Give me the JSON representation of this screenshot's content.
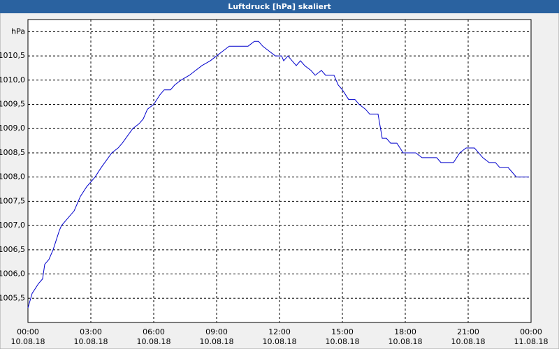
{
  "chart_data": {
    "type": "line",
    "title": "Luftdruck [hPa] skaliert",
    "xlim": [
      0,
      24
    ],
    "ylim": [
      1005,
      1011.25
    ],
    "xticks": [
      {
        "value": 0,
        "label": "00:00\n10.08.18"
      },
      {
        "value": 3,
        "label": "03:00\n10.08.18"
      },
      {
        "value": 6,
        "label": "06:00\n10.08.18"
      },
      {
        "value": 9,
        "label": "09:00\n10.08.18"
      },
      {
        "value": 12,
        "label": "12:00\n10.08.18"
      },
      {
        "value": 15,
        "label": "15:00\n10.08.18"
      },
      {
        "value": 18,
        "label": "18:00\n10.08.18"
      },
      {
        "value": 21,
        "label": "21:00\n10.08.18"
      },
      {
        "value": 24,
        "label": "00:00\n11.08.18"
      }
    ],
    "yticks": [
      {
        "value": 1005.5,
        "label": "1005,5"
      },
      {
        "value": 1006,
        "label": "1006,0"
      },
      {
        "value": 1006.5,
        "label": "1006,5"
      },
      {
        "value": 1007,
        "label": "1007,0"
      },
      {
        "value": 1007.5,
        "label": "1007,5"
      },
      {
        "value": 1008,
        "label": "1008,0"
      },
      {
        "value": 1008.5,
        "label": "1008,5"
      },
      {
        "value": 1009,
        "label": "1009,0"
      },
      {
        "value": 1009.5,
        "label": "1009,5"
      },
      {
        "value": 1010,
        "label": "1010,0"
      },
      {
        "value": 1010.5,
        "label": "1010,5"
      },
      {
        "value": 1011,
        "label": "hPa"
      }
    ],
    "grid": true,
    "series": [
      {
        "color": "#0000cc",
        "x": [
          0,
          0.2,
          0.5,
          0.7,
          0.8,
          1.0,
          1.2,
          1.5,
          1.6,
          1.8,
          2.0,
          2.2,
          2.3,
          2.5,
          2.8,
          3.0,
          3.2,
          3.5,
          4.0,
          4.3,
          4.5,
          5.0,
          5.3,
          5.5,
          5.7,
          6.0,
          6.3,
          6.5,
          6.8,
          7.0,
          7.3,
          7.7,
          8.0,
          8.3,
          8.7,
          9.0,
          9.3,
          9.6,
          10.5,
          10.8,
          11.0,
          11.2,
          11.5,
          11.8,
          12.1,
          12.2,
          12.4,
          12.6,
          12.8,
          13.0,
          13.2,
          13.5,
          13.7,
          14.0,
          14.2,
          14.6,
          14.8,
          15.0,
          15.3,
          15.6,
          15.8,
          16.1,
          16.3,
          16.7,
          16.9,
          17.1,
          17.3,
          17.6,
          17.9,
          18.5,
          18.8,
          19.5,
          19.7,
          20.3,
          20.6,
          20.9,
          21.3,
          21.5,
          21.7,
          22.0,
          22.3,
          22.5,
          22.9,
          23.1,
          23.3,
          23.9
        ],
        "values": [
          1005.3,
          1005.6,
          1005.8,
          1005.9,
          1006.2,
          1006.3,
          1006.5,
          1006.9,
          1007.0,
          1007.1,
          1007.2,
          1007.3,
          1007.4,
          1007.6,
          1007.8,
          1007.9,
          1008.0,
          1008.2,
          1008.5,
          1008.6,
          1008.7,
          1009.0,
          1009.1,
          1009.2,
          1009.4,
          1009.5,
          1009.7,
          1009.8,
          1009.8,
          1009.9,
          1010.0,
          1010.1,
          1010.2,
          1010.3,
          1010.4,
          1010.5,
          1010.6,
          1010.7,
          1010.7,
          1010.8,
          1010.8,
          1010.7,
          1010.6,
          1010.5,
          1010.5,
          1010.4,
          1010.5,
          1010.4,
          1010.3,
          1010.4,
          1010.3,
          1010.2,
          1010.1,
          1010.2,
          1010.1,
          1010.1,
          1009.9,
          1009.8,
          1009.6,
          1009.6,
          1009.5,
          1009.4,
          1009.3,
          1009.3,
          1008.8,
          1008.8,
          1008.7,
          1008.7,
          1008.5,
          1008.5,
          1008.4,
          1008.4,
          1008.3,
          1008.3,
          1008.5,
          1008.6,
          1008.6,
          1008.5,
          1008.4,
          1008.3,
          1008.3,
          1008.2,
          1008.2,
          1008.1,
          1008.0,
          1008.0
        ]
      }
    ]
  }
}
